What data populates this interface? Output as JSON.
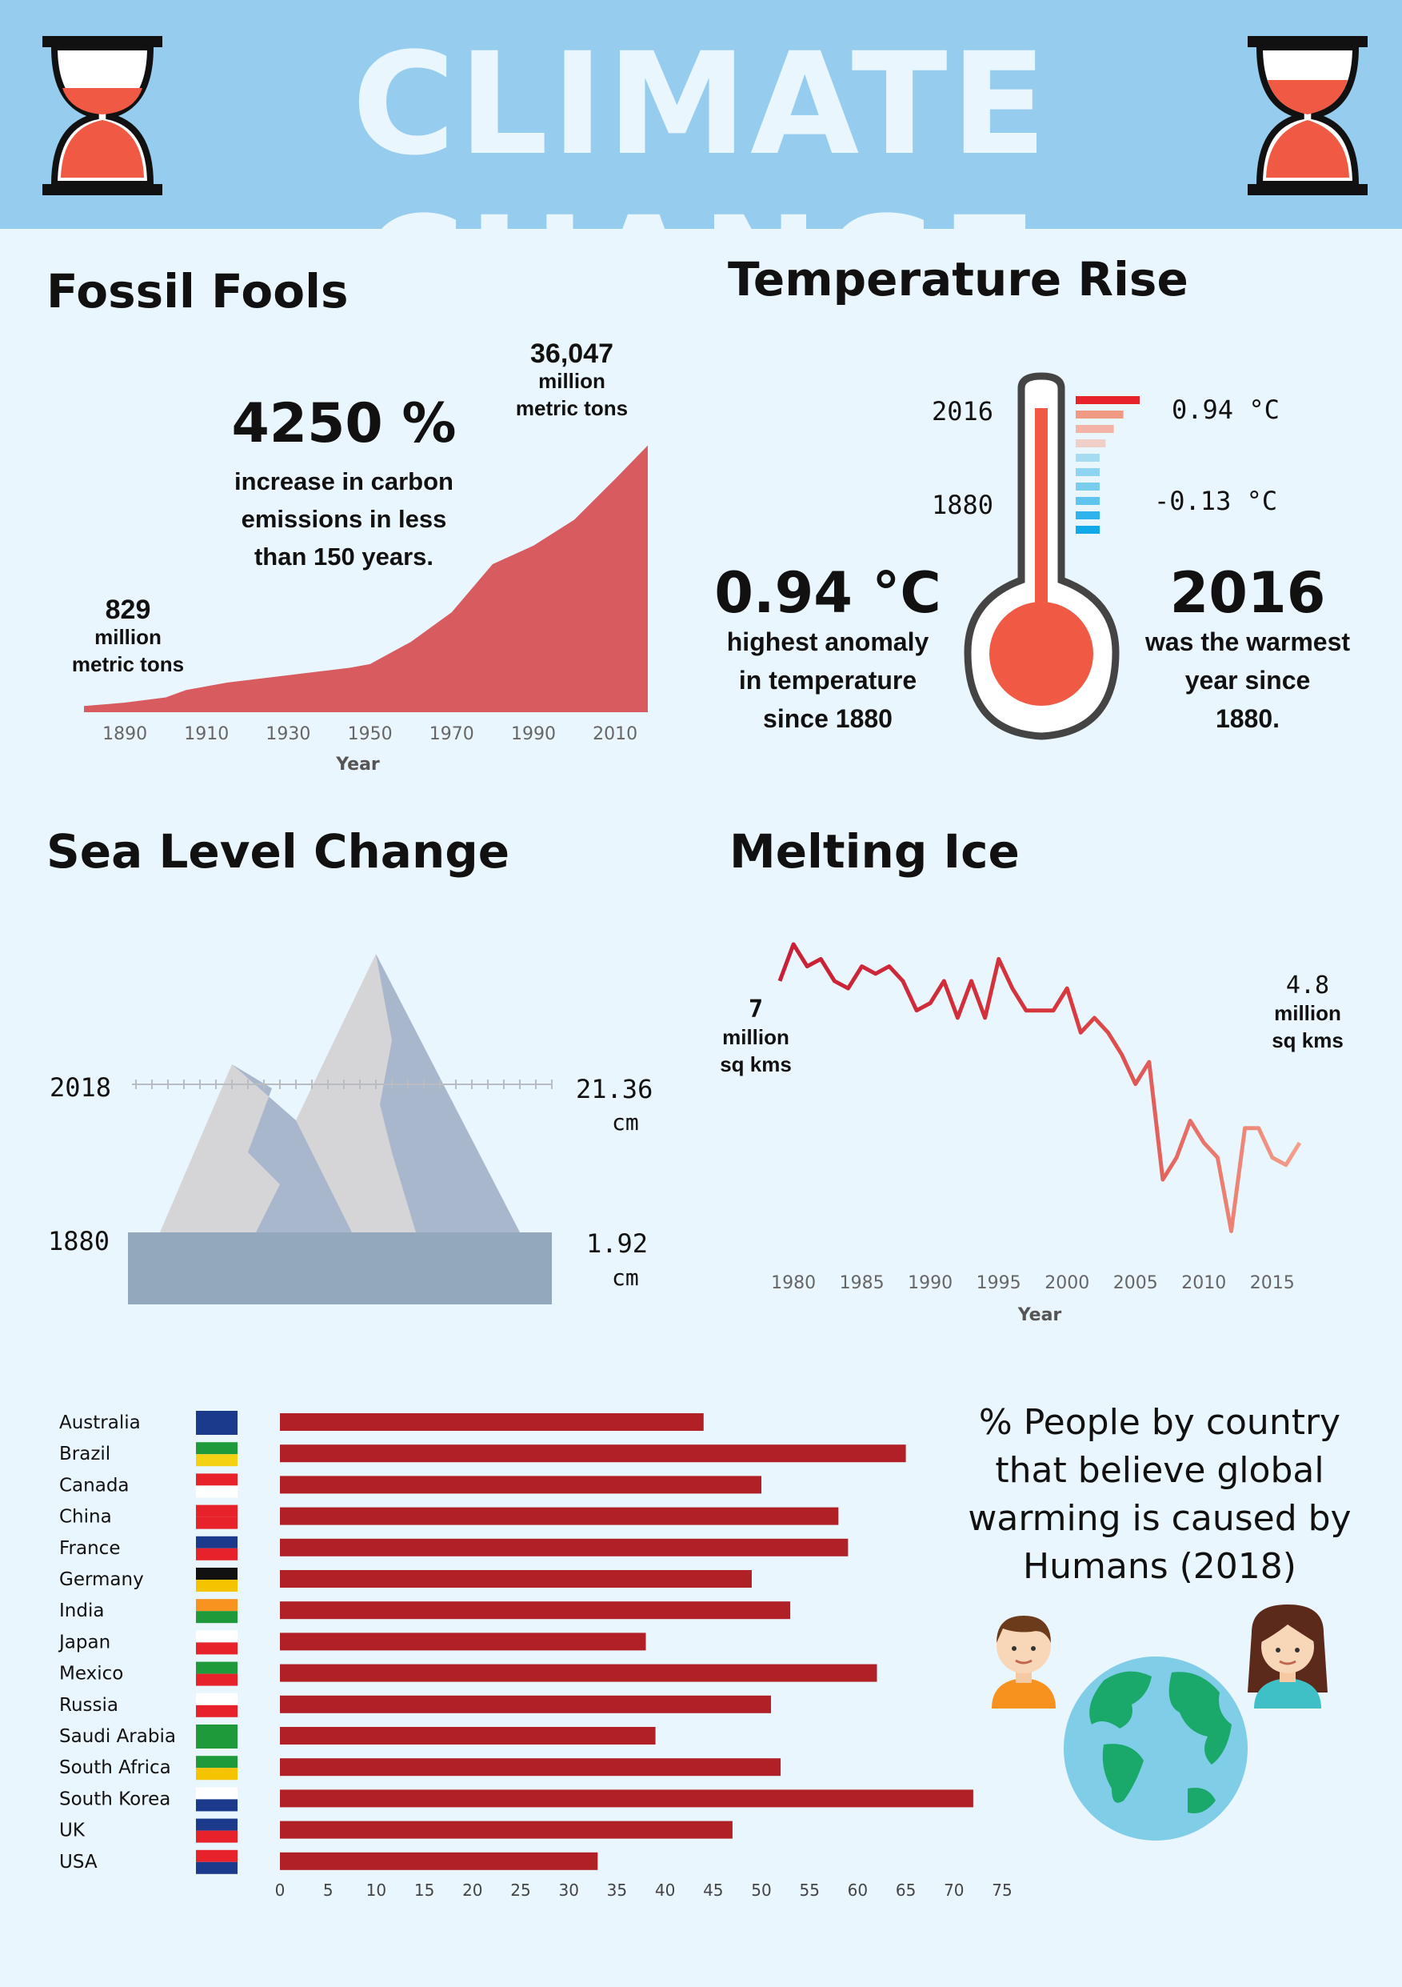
{
  "header": {
    "title": "CLIMATE CHANGE"
  },
  "fossil": {
    "title": "Fossil Fools",
    "big_stat": "4250 %",
    "stat_line1": "increase in carbon",
    "stat_line2": "emissions in less",
    "stat_line3": "than 150 years.",
    "start_value": "829",
    "start_unit1": "million",
    "start_unit2": "metric tons",
    "end_value": "36,047",
    "end_unit1": "million",
    "end_unit2": "metric tons"
  },
  "temperature": {
    "title": "Temperature Rise",
    "year_top": "2016",
    "year_bottom": "1880",
    "val_top": "0.94 °C",
    "val_bottom": "-0.13 °C",
    "left_big": "0.94 °C",
    "left_l1": "highest anomaly",
    "left_l2": "in temperature",
    "left_l3": "since 1880",
    "right_big": "2016",
    "right_l1": "was the warmest",
    "right_l2": "year since",
    "right_l3": "1880."
  },
  "sea": {
    "title": "Sea Level Change",
    "year_top": "2018",
    "year_bottom": "1880",
    "val_top": "21.36",
    "val_top_unit": "cm",
    "val_bottom": "1.92",
    "val_bottom_unit": "cm"
  },
  "ice": {
    "title": "Melting Ice",
    "start_value": "7",
    "start_unit1": "million",
    "start_unit2": "sq kms",
    "end_value": "4.8",
    "end_unit1": "million",
    "end_unit2": "sq kms"
  },
  "belief": {
    "title_l1": "% People by country",
    "title_l2": "that believe global",
    "title_l3": "warming is caused by",
    "title_l4": "Humans (2018)"
  },
  "colors": {
    "header_bg": "#96cdee",
    "page_bg": "#e9f6fe",
    "fossil_area": "#d75b5f",
    "bar": "#b22027",
    "thermo": "#f05a45"
  },
  "chart_data": [
    {
      "type": "area",
      "xlabel": "Year",
      "ylabel": "",
      "x_ticks": [
        1890,
        1910,
        1930,
        1950,
        1970,
        1990,
        2010
      ],
      "xlim": [
        1880,
        2018
      ],
      "ylim": [
        0,
        40000
      ],
      "x": [
        1880,
        1890,
        1900,
        1905,
        1915,
        1930,
        1945,
        1950,
        1960,
        1970,
        1980,
        1990,
        2000,
        2010,
        2018
      ],
      "y": [
        829,
        1300,
        2000,
        3000,
        4000,
        5000,
        6000,
        6500,
        9500,
        13500,
        20000,
        22500,
        26000,
        31500,
        36047
      ]
    },
    {
      "type": "bar",
      "title": "",
      "categories": [
        "2016",
        "",
        "",
        "",
        "",
        "",
        "",
        "",
        "",
        "1880"
      ],
      "values": [
        0.94,
        0.7,
        0.56,
        0.44,
        0.32,
        0.2,
        0.08,
        0.0,
        -0.13,
        -0.13
      ]
    },
    {
      "type": "line",
      "xlabel": "Year",
      "ylabel": "",
      "x_ticks": [
        1980,
        1985,
        1990,
        1995,
        2000,
        2005,
        2010,
        2015
      ],
      "xlim": [
        1979,
        2017
      ],
      "ylim": [
        3.8,
        7.5
      ],
      "x": [
        1979,
        1980,
        1981,
        1982,
        1983,
        1984,
        1985,
        1986,
        1987,
        1988,
        1989,
        1990,
        1991,
        1992,
        1993,
        1994,
        1995,
        1996,
        1997,
        1998,
        1999,
        2000,
        2001,
        2002,
        2003,
        2004,
        2005,
        2006,
        2007,
        2008,
        2009,
        2010,
        2011,
        2012,
        2013,
        2014,
        2015,
        2016,
        2017
      ],
      "y": [
        7.0,
        7.5,
        7.2,
        7.3,
        7.0,
        6.9,
        7.2,
        7.1,
        7.2,
        7.0,
        6.6,
        6.7,
        7.0,
        6.5,
        7.0,
        6.5,
        7.3,
        6.9,
        6.6,
        6.6,
        6.6,
        6.9,
        6.3,
        6.5,
        6.3,
        6.0,
        5.6,
        5.9,
        4.3,
        4.6,
        5.1,
        4.8,
        4.6,
        3.6,
        5.0,
        5.0,
        4.6,
        4.5,
        4.8
      ]
    },
    {
      "type": "bar",
      "title": "% People by country that believe global warming is caused by Humans (2018)",
      "xlim": [
        0,
        75
      ],
      "x_ticks": [
        0,
        5,
        10,
        15,
        20,
        25,
        30,
        35,
        40,
        45,
        50,
        55,
        60,
        65,
        70,
        75
      ],
      "categories": [
        "Australia",
        "Brazil",
        "Canada",
        "China",
        "France",
        "Germany",
        "India",
        "Japan",
        "Mexico",
        "Russia",
        "Saudi Arabia",
        "South Africa",
        "South Korea",
        "UK",
        "USA"
      ],
      "values": [
        44,
        65,
        50,
        58,
        59,
        49,
        53,
        38,
        62,
        51,
        39,
        52,
        72,
        47,
        33
      ]
    }
  ]
}
